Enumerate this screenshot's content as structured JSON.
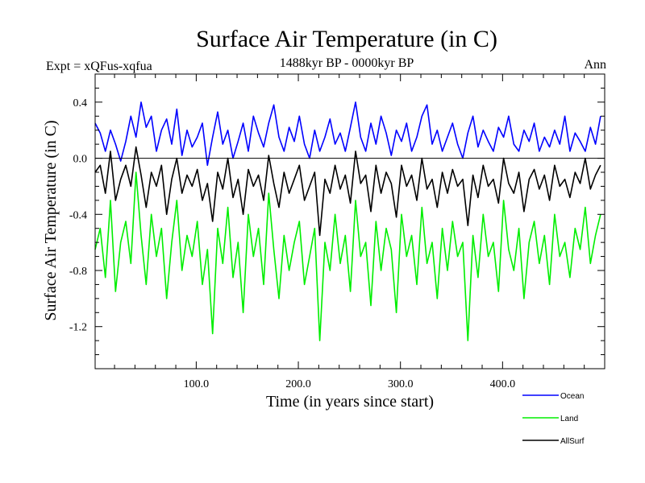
{
  "chart_data": {
    "type": "line",
    "title": "Surface Air Temperature (in C)",
    "subtitle_left": "Expt = xQFus-xqfua",
    "subtitle_center": "1488kyr BP - 0000kyr BP",
    "subtitle_right": "Ann",
    "xlabel": "Time (in years since start)",
    "ylabel": "Surface Air Temperature (in C)",
    "xlim": [
      1,
      500
    ],
    "ylim": [
      -1.5,
      0.6
    ],
    "xticks": [
      100,
      200,
      300,
      400
    ],
    "xtick_labels": [
      "100.0",
      "200.0",
      "300.0",
      "400.0"
    ],
    "yticks": [
      0.4,
      0.0,
      -0.4,
      -0.8,
      -1.2
    ],
    "ytick_labels": [
      "0.4",
      "0.0",
      "-0.4",
      "-0.8",
      "-1.2"
    ],
    "zero_line": true,
    "legend_position": "bottom-right",
    "series": [
      {
        "name": "Ocean",
        "color": "#0000ff",
        "x_start": 1,
        "x_step": 5,
        "values": [
          0.25,
          0.18,
          0.05,
          0.2,
          0.1,
          -0.02,
          0.12,
          0.3,
          0.15,
          0.4,
          0.22,
          0.3,
          0.05,
          0.2,
          0.28,
          0.1,
          0.35,
          0.02,
          0.2,
          0.08,
          0.15,
          0.25,
          -0.05,
          0.15,
          0.33,
          0.1,
          0.2,
          0.0,
          0.12,
          0.25,
          0.05,
          0.3,
          0.18,
          0.08,
          0.25,
          0.38,
          0.15,
          0.05,
          0.22,
          0.12,
          0.3,
          0.1,
          0.0,
          0.2,
          0.05,
          0.15,
          0.28,
          0.1,
          0.18,
          0.05,
          0.22,
          0.4,
          0.15,
          0.05,
          0.25,
          0.1,
          0.3,
          0.18,
          0.02,
          0.2,
          0.12,
          0.25,
          0.05,
          0.15,
          0.3,
          0.38,
          0.1,
          0.2,
          0.05,
          0.15,
          0.25,
          0.1,
          0.0,
          0.18,
          0.3,
          0.08,
          0.2,
          0.12,
          0.05,
          0.22,
          0.15,
          0.3,
          0.1,
          0.05,
          0.2,
          0.12,
          0.25,
          0.05,
          0.15,
          0.08,
          0.2,
          0.1,
          0.3,
          0.05,
          0.18,
          0.12,
          0.05,
          0.22,
          0.1,
          0.3
        ]
      },
      {
        "name": "Land",
        "color": "#00ee00",
        "x_start": 1,
        "x_step": 5,
        "values": [
          -0.65,
          -0.5,
          -0.85,
          -0.3,
          -0.95,
          -0.6,
          -0.45,
          -0.75,
          -0.1,
          -0.55,
          -0.9,
          -0.4,
          -0.7,
          -0.5,
          -1.0,
          -0.6,
          -0.3,
          -0.8,
          -0.55,
          -0.7,
          -0.45,
          -0.9,
          -0.65,
          -1.25,
          -0.5,
          -0.75,
          -0.35,
          -0.85,
          -0.6,
          -1.1,
          -0.4,
          -0.7,
          -0.5,
          -0.9,
          -0.25,
          -0.65,
          -1.0,
          -0.55,
          -0.8,
          -0.6,
          -0.45,
          -0.9,
          -0.7,
          -0.5,
          -1.3,
          -0.6,
          -0.8,
          -0.4,
          -0.75,
          -0.55,
          -0.95,
          -0.3,
          -0.7,
          -0.6,
          -1.05,
          -0.45,
          -0.8,
          -0.5,
          -0.65,
          -1.1,
          -0.4,
          -0.7,
          -0.55,
          -0.9,
          -0.35,
          -0.75,
          -0.6,
          -1.0,
          -0.5,
          -0.8,
          -0.45,
          -0.7,
          -0.6,
          -1.3,
          -0.55,
          -0.85,
          -0.4,
          -0.7,
          -0.6,
          -0.95,
          -0.3,
          -0.65,
          -0.8,
          -0.5,
          -1.0,
          -0.6,
          -0.45,
          -0.75,
          -0.55,
          -0.9,
          -0.4,
          -0.7,
          -0.6,
          -0.85,
          -0.5,
          -0.65,
          -0.35,
          -0.75,
          -0.55,
          -0.4
        ]
      },
      {
        "name": "AllSurf",
        "color": "#000000",
        "x_start": 1,
        "x_step": 5,
        "values": [
          -0.1,
          -0.05,
          -0.25,
          0.05,
          -0.3,
          -0.15,
          -0.05,
          -0.2,
          0.08,
          -0.12,
          -0.35,
          -0.1,
          -0.2,
          -0.05,
          -0.4,
          -0.15,
          0.0,
          -0.25,
          -0.12,
          -0.2,
          -0.08,
          -0.3,
          -0.18,
          -0.45,
          -0.1,
          -0.22,
          0.0,
          -0.28,
          -0.15,
          -0.4,
          -0.08,
          -0.2,
          -0.12,
          -0.3,
          0.02,
          -0.18,
          -0.35,
          -0.1,
          -0.25,
          -0.15,
          -0.05,
          -0.3,
          -0.2,
          -0.1,
          -0.55,
          -0.15,
          -0.25,
          -0.05,
          -0.22,
          -0.12,
          -0.32,
          0.05,
          -0.18,
          -0.12,
          -0.38,
          -0.05,
          -0.25,
          -0.1,
          -0.18,
          -0.42,
          -0.05,
          -0.2,
          -0.12,
          -0.3,
          0.0,
          -0.22,
          -0.15,
          -0.35,
          -0.1,
          -0.25,
          -0.08,
          -0.2,
          -0.15,
          -0.48,
          -0.12,
          -0.28,
          -0.05,
          -0.2,
          -0.15,
          -0.32,
          0.0,
          -0.18,
          -0.25,
          -0.1,
          -0.38,
          -0.15,
          -0.08,
          -0.22,
          -0.12,
          -0.3,
          -0.05,
          -0.2,
          -0.15,
          -0.28,
          -0.1,
          -0.18,
          0.0,
          -0.22,
          -0.12,
          -0.05
        ]
      }
    ]
  }
}
